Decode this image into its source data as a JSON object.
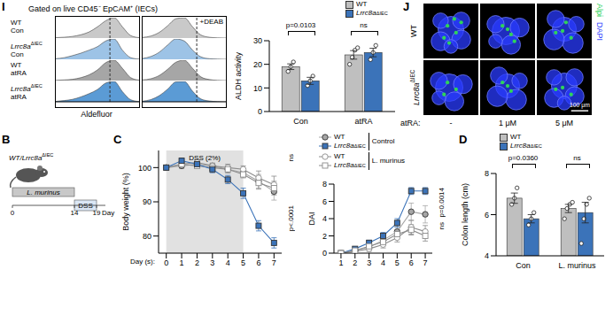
{
  "chart_data": [
    {
      "label": "I",
      "type": "histogram",
      "title": "Gated on live CD45⁻ EpCAM⁺ (IECs)",
      "xlabel": "Aldefluor",
      "tick_labels": false,
      "x": [
        0,
        2,
        4,
        6,
        8,
        10,
        12,
        14,
        16,
        18,
        20
      ],
      "xlim": [
        0,
        20
      ],
      "ylim": [
        0,
        100
      ],
      "reference_x": 13,
      "series": [
        {
          "name": "WT Con",
          "color": "#c9c9c9",
          "values": [
            2,
            4,
            8,
            16,
            30,
            55,
            85,
            100,
            55,
            12,
            2
          ]
        },
        {
          "name": "Lrrc8aΔIEC Con",
          "color": "#9dc3e6",
          "values": [
            3,
            8,
            18,
            30,
            45,
            62,
            90,
            100,
            45,
            8,
            1
          ]
        },
        {
          "name": "WT atRA",
          "color": "#a6a6a6",
          "values": [
            1,
            3,
            6,
            14,
            28,
            52,
            88,
            100,
            60,
            14,
            2
          ]
        },
        {
          "name": "Lrrc8aΔIEC atRA",
          "color": "#5b9bd5",
          "values": [
            2,
            6,
            12,
            24,
            40,
            60,
            92,
            100,
            50,
            10,
            1
          ]
        }
      ]
    },
    {
      "type": "histogram",
      "subtitle": "+DEAB",
      "tick_labels": false,
      "x": [
        0,
        2,
        4,
        6,
        8,
        10,
        12,
        14,
        16,
        18,
        20
      ],
      "xlim": [
        0,
        20
      ],
      "ylim": [
        0,
        100
      ],
      "reference_x": 13,
      "series": [
        {
          "color": "#c9c9c9",
          "values": [
            3,
            10,
            28,
            60,
            95,
            100,
            55,
            15,
            4,
            1,
            0
          ]
        },
        {
          "color": "#9dc3e6",
          "values": [
            4,
            14,
            35,
            70,
            100,
            90,
            45,
            12,
            3,
            1,
            0
          ]
        },
        {
          "color": "#a6a6a6",
          "values": [
            3,
            9,
            25,
            55,
            90,
            100,
            60,
            18,
            5,
            1,
            0
          ]
        },
        {
          "color": "#5b9bd5",
          "values": [
            3,
            11,
            30,
            62,
            98,
            100,
            52,
            14,
            4,
            1,
            0
          ]
        }
      ]
    },
    {
      "type": "bar",
      "ylabel": "ALDH activity",
      "categories": [
        "Con",
        "atRA"
      ],
      "ylim": [
        0,
        30
      ],
      "yticks": [
        0,
        10,
        20,
        30
      ],
      "legend": "top right",
      "series": [
        {
          "name": "WT",
          "color": "#bfbfbf",
          "values": [
            19,
            24
          ],
          "errors": [
            1.2,
            1.8
          ],
          "points": [
            [
              17,
              19,
              21
            ],
            [
              20,
              23,
              26,
              27
            ]
          ]
        },
        {
          "name": "Lrrc8aΔIEC",
          "color": "#3b73b9",
          "values": [
            13,
            25
          ],
          "errors": [
            1.5,
            1.8
          ],
          "points": [
            [
              11,
              13,
              15
            ],
            [
              22,
              25,
              28
            ]
          ]
        }
      ],
      "annotations": [
        {
          "text": "p=0.0103",
          "category": "Con"
        },
        {
          "text": "ns",
          "category": "atRA"
        }
      ]
    },
    {
      "label": "C",
      "type": "line",
      "xlabel": "Day (s):",
      "ylabel": "Body weight (%)",
      "x": [
        0,
        1,
        2,
        3,
        4,
        5,
        6,
        7
      ],
      "xlim": [
        -0.5,
        7.5
      ],
      "xticks": [
        0,
        1,
        2,
        3,
        4,
        5,
        6,
        7
      ],
      "ylim": [
        75,
        105
      ],
      "yticks": [
        80,
        90,
        100
      ],
      "shaded": {
        "x": [
          0,
          5
        ],
        "label": "DSS (2%)"
      },
      "series": [
        {
          "name": "WT",
          "group": "Control",
          "color": "#a6a6a6",
          "marker": "circle",
          "values": [
            100,
            100.5,
            101,
            100.5,
            99.5,
            98.5,
            96,
            93
          ],
          "errors": [
            0.5,
            0.8,
            0.8,
            0.8,
            1,
            1.2,
            2,
            2.5
          ]
        },
        {
          "name": "WT",
          "group": "L. murinus",
          "color": "#8c8c8c",
          "marker": "open_circle",
          "values": [
            100,
            101,
            101.5,
            100.5,
            100,
            99.5,
            97,
            95
          ],
          "errors": [
            0.5,
            0.8,
            0.8,
            0.8,
            1,
            1,
            2,
            2.5
          ]
        },
        {
          "name": "Lrrc8aΔIEC",
          "group": "L. murinus",
          "color": "#8c8c8c",
          "marker": "open_square",
          "values": [
            100,
            101,
            100.5,
            100,
            99.5,
            98,
            95.5,
            94
          ],
          "errors": [
            0.5,
            0.8,
            0.8,
            0.8,
            1,
            1,
            1.8,
            2
          ]
        },
        {
          "name": "Lrrc8aΔIEC",
          "group": "Control",
          "color": "#3b73b9",
          "marker": "square",
          "values": [
            100,
            102,
            101,
            99.5,
            96.5,
            92.5,
            83,
            78
          ],
          "errors": [
            0.5,
            0.8,
            1,
            1,
            1.2,
            1.5,
            1.5,
            1.5
          ]
        }
      ],
      "annotations": [
        {
          "text": "ns"
        },
        {
          "text": "p<.0001"
        }
      ]
    },
    {
      "type": "line",
      "ylabel": "DAI",
      "x": [
        1,
        2,
        3,
        4,
        5,
        6,
        7
      ],
      "xlim": [
        0.5,
        7.5
      ],
      "xticks": [
        1,
        2,
        3,
        4,
        5,
        6,
        7
      ],
      "ylim": [
        0,
        8
      ],
      "yticks": [
        0,
        2,
        4,
        6,
        8
      ],
      "legend": "top left",
      "series": [
        {
          "name": "WT",
          "group": "Control",
          "color": "#a6a6a6",
          "marker": "circle",
          "values": [
            0,
            0.3,
            0.7,
            1.5,
            2.5,
            4.8,
            4.5
          ],
          "errors": [
            0,
            0.2,
            0.3,
            0.5,
            0.6,
            1,
            1
          ]
        },
        {
          "name": "Lrrc8aΔIEC",
          "group": "Control",
          "color": "#3b73b9",
          "marker": "square",
          "values": [
            0,
            0.5,
            1.2,
            2,
            3.5,
            7.2,
            7.2
          ],
          "errors": [
            0,
            0.2,
            0.3,
            0.4,
            0.5,
            0.4,
            0.4
          ]
        },
        {
          "name": "WT",
          "group": "L. murinus",
          "color": "#8c8c8c",
          "marker": "open_circle",
          "values": [
            0,
            0.2,
            0.5,
            1,
            1.8,
            3,
            2.5
          ],
          "errors": [
            0,
            0.2,
            0.3,
            0.4,
            0.5,
            0.8,
            0.7
          ]
        },
        {
          "name": "Lrrc8aΔIEC",
          "group": "L. murinus",
          "color": "#8c8c8c",
          "marker": "open_square",
          "values": [
            0,
            0.3,
            0.8,
            1.3,
            2.2,
            2.7,
            2
          ],
          "errors": [
            0,
            0.2,
            0.3,
            0.4,
            0.5,
            0.6,
            0.6
          ]
        }
      ],
      "annotations": [
        {
          "text": "p=0.0014"
        },
        {
          "text": "ns"
        }
      ]
    },
    {
      "label": "D",
      "type": "bar",
      "ylabel": "Colon length (cm)",
      "categories": [
        "Con",
        "L. murinus"
      ],
      "ylim": [
        4,
        8
      ],
      "yticks": [
        4,
        6,
        8
      ],
      "legend": "top left",
      "series": [
        {
          "name": "WT",
          "color": "#bfbfbf",
          "values": [
            6.8,
            6.3
          ],
          "errors": [
            0.25,
            0.2
          ],
          "points": [
            [
              6.5,
              6.8,
              7.3
            ],
            [
              5.8,
              6.3,
              6.5,
              6.6
            ]
          ]
        },
        {
          "name": "Lrrc8aΔIEC",
          "color": "#3b73b9",
          "values": [
            5.8,
            6.1
          ],
          "errors": [
            0.2,
            0.5
          ],
          "points": [
            [
              5.5,
              5.8,
              6.1
            ],
            [
              4.6,
              5.8,
              6.5,
              6.8
            ]
          ]
        }
      ],
      "annotations": [
        {
          "text": "p=0.0360",
          "category": "Con"
        },
        {
          "text": "ns",
          "category": "L. murinus"
        }
      ]
    }
  ],
  "schematic": {
    "label": "B",
    "mouse_label": "WT/Lrrc8aΔIEC",
    "phases": [
      {
        "name": "L. murinus",
        "start": 0,
        "end": 14
      },
      {
        "name": "DSS",
        "start": 14,
        "end": 19
      }
    ],
    "ticks": [
      0,
      14,
      19
    ],
    "unit": "Day"
  },
  "images": {
    "label": "J",
    "rows": [
      "WT",
      "Lrrc8aΔIEC"
    ],
    "columns": [
      "-",
      "1 μM",
      "5 μM"
    ],
    "column_title": "atRA:",
    "channels": [
      {
        "name": "Alpi",
        "color": "#2fd35a"
      },
      {
        "name": "DAPI",
        "color": "#2a3bff"
      }
    ],
    "scale_bar": "100 μm"
  }
}
